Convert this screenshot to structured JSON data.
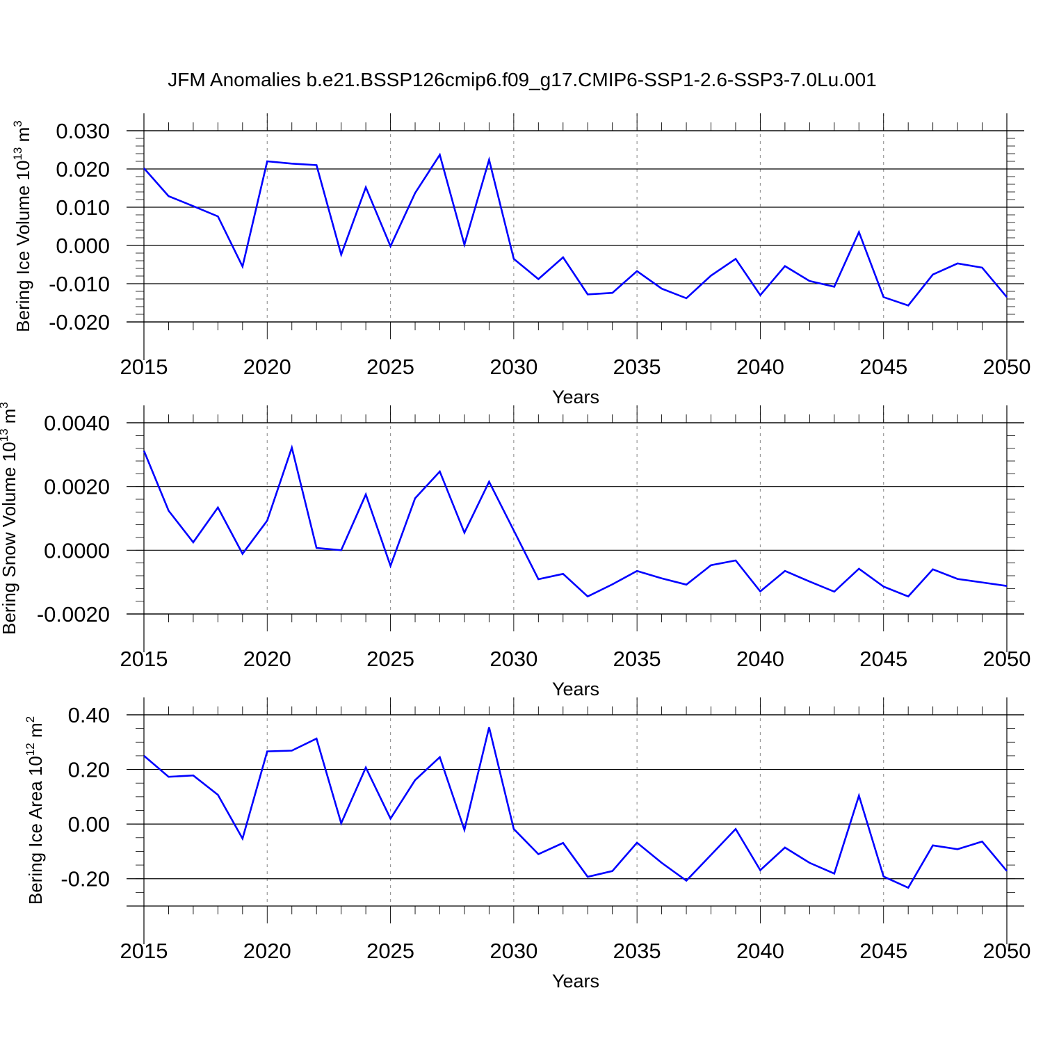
{
  "title": "JFM Anomalies b.e21.BSSP126cmip6.f09_g17.CMIP6-SSP1-2.6-SSP3-7.0Lu.001",
  "colors": {
    "line": "#0000ff",
    "axis": "#000000",
    "grid": "#999999",
    "background": "#ffffff"
  },
  "chart_data": [
    {
      "type": "line",
      "ylabel": {
        "text": "Bering Ice Volume 10",
        "sup": "13",
        "unit": " m",
        "unit_sup": "3"
      },
      "xlabel": "Years",
      "xlim": [
        2015,
        2050
      ],
      "ylim": [
        -0.02,
        0.03
      ],
      "x_ticks": [
        "2015",
        "2020",
        "2025",
        "2030",
        "2035",
        "2040",
        "2045",
        "2050"
      ],
      "y_ticks": [
        0.03,
        0.02,
        0.01,
        0.0,
        -0.01,
        -0.02
      ],
      "y_tick_labels": [
        "0.030",
        "0.020",
        "0.010",
        "0.000",
        "-0.010",
        "-0.020"
      ],
      "y_minor_step": 0.002,
      "grid": "vertical dashed at major x ticks",
      "series": [
        {
          "x": [
            2015,
            2016,
            2017,
            2018,
            2019,
            2020,
            2021,
            2022,
            2023,
            2024,
            2025,
            2026,
            2027,
            2028,
            2029,
            2030,
            2031,
            2032,
            2033,
            2034,
            2035,
            2036,
            2037,
            2038,
            2039,
            2040,
            2041,
            2042,
            2043,
            2044,
            2045,
            2046,
            2047,
            2048,
            2049,
            2050
          ],
          "values": [
            0.0202,
            0.0129,
            0.0103,
            0.0076,
            -0.0055,
            0.022,
            0.0214,
            0.021,
            -0.0024,
            0.0152,
            -0.0002,
            0.0137,
            0.0237,
            0.0002,
            0.0224,
            -0.0035,
            -0.0088,
            -0.0031,
            -0.0128,
            -0.0124,
            -0.0067,
            -0.0113,
            -0.0138,
            -0.0079,
            -0.0035,
            -0.013,
            -0.0054,
            -0.0093,
            -0.0108,
            0.0035,
            -0.0135,
            -0.0157,
            -0.0076,
            -0.0047,
            -0.0058,
            -0.0135
          ]
        }
      ]
    },
    {
      "type": "line",
      "ylabel": {
        "text": "Bering Snow Volume 10",
        "sup": "13",
        "unit": " m",
        "unit_sup": "3"
      },
      "xlabel": "Years",
      "xlim": [
        2015,
        2050
      ],
      "ylim": [
        -0.002,
        0.004
      ],
      "x_ticks": [
        "2015",
        "2020",
        "2025",
        "2030",
        "2035",
        "2040",
        "2045",
        "2050"
      ],
      "y_ticks": [
        0.004,
        0.002,
        0.0,
        -0.002
      ],
      "y_tick_labels": [
        "0.0040",
        "0.0020",
        "0.0000",
        "-0.0020"
      ],
      "y_minor_step": 0.0004,
      "grid": "vertical dashed at major x ticks",
      "series": [
        {
          "x": [
            2015,
            2016,
            2017,
            2018,
            2019,
            2020,
            2021,
            2022,
            2023,
            2024,
            2025,
            2026,
            2027,
            2028,
            2029,
            2030,
            2031,
            2032,
            2033,
            2034,
            2035,
            2036,
            2037,
            2038,
            2039,
            2040,
            2041,
            2042,
            2043,
            2044,
            2045,
            2046,
            2047,
            2048,
            2049,
            2050
          ],
          "values": [
            0.00312,
            0.00124,
            0.00025,
            0.00134,
            -0.00011,
            0.00093,
            0.00322,
            7e-05,
            0.0,
            0.00175,
            -0.00049,
            0.00163,
            0.00247,
            0.00055,
            0.00215,
            0.00062,
            -0.00091,
            -0.00074,
            -0.00145,
            -0.00107,
            -0.00065,
            -0.00088,
            -0.00108,
            -0.00047,
            -0.00032,
            -0.00129,
            -0.00065,
            -0.00098,
            -0.0013,
            -0.00058,
            -0.00114,
            -0.00145,
            -0.0006,
            -0.0009,
            -0.00101,
            -0.00112
          ]
        }
      ]
    },
    {
      "type": "line",
      "ylabel": {
        "text": "Bering Ice Area 10",
        "sup": "12",
        "unit": " m",
        "unit_sup": "2"
      },
      "xlabel": "Years",
      "xlim": [
        2015,
        2050
      ],
      "ylim": [
        -0.3,
        0.4
      ],
      "x_ticks": [
        "2015",
        "2020",
        "2025",
        "2030",
        "2035",
        "2040",
        "2045",
        "2050"
      ],
      "y_ticks": [
        0.4,
        0.2,
        0.0,
        -0.2
      ],
      "y_tick_labels": [
        "0.40",
        "0.20",
        "0.00",
        "-0.20"
      ],
      "y_minor_step": 0.05,
      "grid": "vertical dashed at major x ticks",
      "series": [
        {
          "x": [
            2015,
            2016,
            2017,
            2018,
            2019,
            2020,
            2021,
            2022,
            2023,
            2024,
            2025,
            2026,
            2027,
            2028,
            2029,
            2030,
            2031,
            2032,
            2033,
            2034,
            2035,
            2036,
            2037,
            2038,
            2039,
            2040,
            2041,
            2042,
            2043,
            2044,
            2045,
            2046,
            2047,
            2048,
            2049,
            2050
          ],
          "values": [
            0.25,
            0.173,
            0.178,
            0.107,
            -0.053,
            0.266,
            0.269,
            0.313,
            0.003,
            0.207,
            0.02,
            0.161,
            0.245,
            -0.021,
            0.354,
            -0.018,
            -0.11,
            -0.069,
            -0.193,
            -0.172,
            -0.068,
            -0.142,
            -0.207,
            -0.113,
            -0.018,
            -0.169,
            -0.086,
            -0.142,
            -0.181,
            0.104,
            -0.192,
            -0.233,
            -0.078,
            -0.092,
            -0.064,
            -0.172
          ]
        }
      ]
    }
  ]
}
